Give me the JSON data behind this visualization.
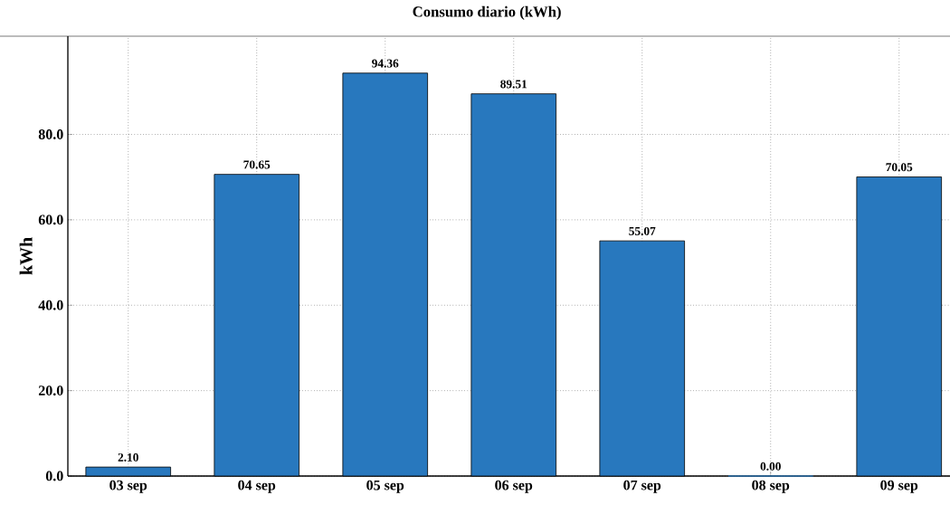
{
  "chart_data": {
    "type": "bar",
    "title": "Consumo diario (kWh)",
    "ylabel": "kWh",
    "categories": [
      "03 sep",
      "04 sep",
      "05 sep",
      "06 sep",
      "07 sep",
      "08 sep",
      "09 sep"
    ],
    "values": [
      2.1,
      70.65,
      94.36,
      89.51,
      55.07,
      0.0,
      70.05
    ],
    "value_labels": [
      "2.10",
      "70.65",
      "94.36",
      "89.51",
      "55.07",
      "0.00",
      "70.05"
    ],
    "color": "#2878be",
    "ylim": [
      0,
      103
    ],
    "yticks": [
      {
        "value": 0,
        "label": "0.0"
      },
      {
        "value": 20,
        "label": "20.0"
      },
      {
        "value": 40,
        "label": "40.0"
      },
      {
        "value": 60,
        "label": "60.0"
      },
      {
        "value": 80,
        "label": "80.0"
      }
    ],
    "grid": true
  }
}
